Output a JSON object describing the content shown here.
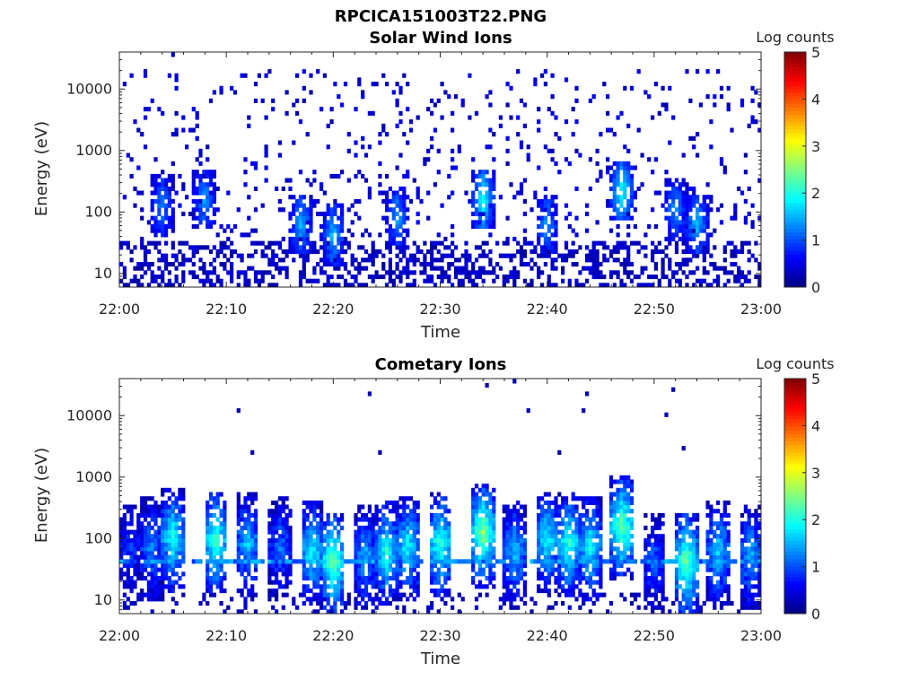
{
  "figure_title": "RPCICA151003T22.PNG",
  "colors": {
    "axis": "#262626",
    "background": "#ffffff"
  },
  "chart_data": [
    {
      "type": "heatmap",
      "title": "Solar Wind Ions",
      "xlabel": "Time",
      "ylabel": "Energy (eV)",
      "x_range": [
        "22:00",
        "23:00"
      ],
      "x_ticks": [
        "22:00",
        "22:10",
        "22:20",
        "22:30",
        "22:40",
        "22:50",
        "23:00"
      ],
      "y_scale": "log",
      "y_range": [
        6,
        40000
      ],
      "y_ticks": [
        "10",
        "100",
        "1000",
        "10000"
      ],
      "colorbar": {
        "label": "Log counts",
        "min": 0,
        "max": 5,
        "ticks": [
          "0",
          "1",
          "2",
          "3",
          "4",
          "5"
        ],
        "colormap": "jet"
      },
      "features": {
        "background_noise_density": 0.5,
        "low_energy_counts_below_eV": 30,
        "bursts": [
          {
            "time": "22:04",
            "energy_eV": 120,
            "peak_log_counts": 1.2
          },
          {
            "time": "22:08",
            "energy_eV": 150,
            "peak_log_counts": 1.3
          },
          {
            "time": "22:17",
            "energy_eV": 60,
            "peak_log_counts": 1.4
          },
          {
            "time": "22:20",
            "energy_eV": 40,
            "peak_log_counts": 1.5
          },
          {
            "time": "22:26",
            "energy_eV": 80,
            "peak_log_counts": 1.3
          },
          {
            "time": "22:34",
            "energy_eV": 150,
            "peak_log_counts": 1.9
          },
          {
            "time": "22:40",
            "energy_eV": 60,
            "peak_log_counts": 1.3
          },
          {
            "time": "22:47",
            "energy_eV": 200,
            "peak_log_counts": 1.9
          },
          {
            "time": "22:52",
            "energy_eV": 100,
            "peak_log_counts": 1.3
          },
          {
            "time": "22:54",
            "energy_eV": 60,
            "peak_log_counts": 1.5
          }
        ]
      }
    },
    {
      "type": "heatmap",
      "title": "Cometary Ions",
      "xlabel": "Time",
      "ylabel": "Energy (eV)",
      "x_range": [
        "22:00",
        "23:00"
      ],
      "x_ticks": [
        "22:00",
        "22:10",
        "22:20",
        "22:30",
        "22:40",
        "22:50",
        "23:00"
      ],
      "y_scale": "log",
      "y_range": [
        6,
        40000
      ],
      "y_ticks": [
        "10",
        "100",
        "1000",
        "10000"
      ],
      "colorbar": {
        "label": "Log counts",
        "min": 0,
        "max": 5,
        "ticks": [
          "0",
          "1",
          "2",
          "3",
          "4",
          "5"
        ],
        "colormap": "jet"
      },
      "features": {
        "constant_band_eV": 42,
        "columns": [
          {
            "time": "22:01",
            "energy_eV": 60,
            "peak_log_counts": 1.2
          },
          {
            "time": "22:03",
            "energy_eV": 70,
            "peak_log_counts": 1.6
          },
          {
            "time": "22:05",
            "energy_eV": 100,
            "peak_log_counts": 2.3
          },
          {
            "time": "22:09",
            "energy_eV": 90,
            "peak_log_counts": 2.5
          },
          {
            "time": "22:12",
            "energy_eV": 80,
            "peak_log_counts": 1.9
          },
          {
            "time": "22:15",
            "energy_eV": 70,
            "peak_log_counts": 1.5
          },
          {
            "time": "22:18",
            "energy_eV": 60,
            "peak_log_counts": 2.2
          },
          {
            "time": "22:20",
            "energy_eV": 40,
            "peak_log_counts": 2.8
          },
          {
            "time": "22:23",
            "energy_eV": 50,
            "peak_log_counts": 1.8
          },
          {
            "time": "22:25",
            "energy_eV": 60,
            "peak_log_counts": 2.3
          },
          {
            "time": "22:27",
            "energy_eV": 70,
            "peak_log_counts": 2.2
          },
          {
            "time": "22:30",
            "energy_eV": 80,
            "peak_log_counts": 2.5
          },
          {
            "time": "22:34",
            "energy_eV": 120,
            "peak_log_counts": 2.9
          },
          {
            "time": "22:37",
            "energy_eV": 60,
            "peak_log_counts": 1.9
          },
          {
            "time": "22:40",
            "energy_eV": 90,
            "peak_log_counts": 2.2
          },
          {
            "time": "22:42",
            "energy_eV": 80,
            "peak_log_counts": 2.4
          },
          {
            "time": "22:44",
            "energy_eV": 70,
            "peak_log_counts": 2.2
          },
          {
            "time": "22:47",
            "energy_eV": 150,
            "peak_log_counts": 2.8
          },
          {
            "time": "22:50",
            "energy_eV": 40,
            "peak_log_counts": 1.4
          },
          {
            "time": "22:53",
            "energy_eV": 40,
            "peak_log_counts": 2.8
          },
          {
            "time": "22:56",
            "energy_eV": 60,
            "peak_log_counts": 2.0
          },
          {
            "time": "22:59",
            "energy_eV": 50,
            "peak_log_counts": 1.8
          }
        ]
      }
    }
  ]
}
